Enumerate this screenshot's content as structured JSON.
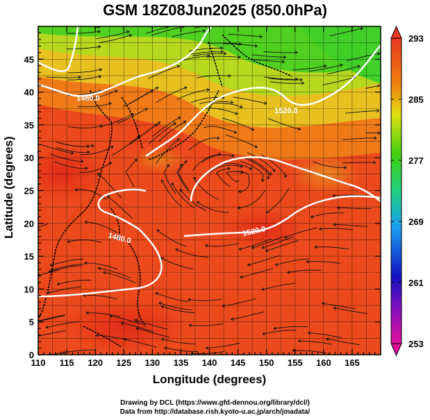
{
  "title": "GSM 18Z08Jun2025 (850.0hPa)",
  "axes": {
    "xlabel": "Longitude (degrees)",
    "ylabel": "Latitude  (degrees)",
    "x_ticks": [
      "110",
      "115",
      "120",
      "125",
      "130",
      "135",
      "140",
      "145",
      "150",
      "155",
      "160",
      "165"
    ],
    "y_ticks": [
      "0",
      "5",
      "10",
      "15",
      "20",
      "25",
      "30",
      "35",
      "40",
      "45"
    ],
    "x_range": [
      110,
      170
    ],
    "y_range": [
      0,
      50
    ]
  },
  "colorbar": {
    "labels": [
      "293",
      "285",
      "277",
      "269",
      "261",
      "253"
    ],
    "min": 253,
    "max": 293,
    "colors": [
      "#e0109a",
      "#1010c0",
      "#1aa0f0",
      "#20d080",
      "#40d010",
      "#e0e010",
      "#f08010",
      "#e83820"
    ]
  },
  "contour_labels": [
    "1480.0",
    "1520.0",
    "1480.0",
    "1520.0"
  ],
  "credits": {
    "line1": "Drawing by DCL (https://www.gfd-dennou.org/library/dcl/)",
    "line2": "Data from http://database.rish.kyoto-u.ac.jp/arch/jmadata/"
  },
  "chart_data": {
    "type": "heatmap",
    "title": "GSM 18Z08Jun2025 (850.0hPa)",
    "xlabel": "Longitude (degrees)",
    "ylabel": "Latitude  (degrees)",
    "xlim": [
      110,
      170
    ],
    "ylim": [
      0,
      50
    ],
    "colorbar_range": [
      253,
      293
    ],
    "colorbar_ticks": [
      253,
      261,
      269,
      277,
      285,
      293
    ],
    "contour_levels": [
      1480.0,
      1520.0
    ],
    "overlays": [
      "temperature shading",
      "geopotential height contours",
      "wind streamlines",
      "coastlines"
    ],
    "grid": true
  }
}
